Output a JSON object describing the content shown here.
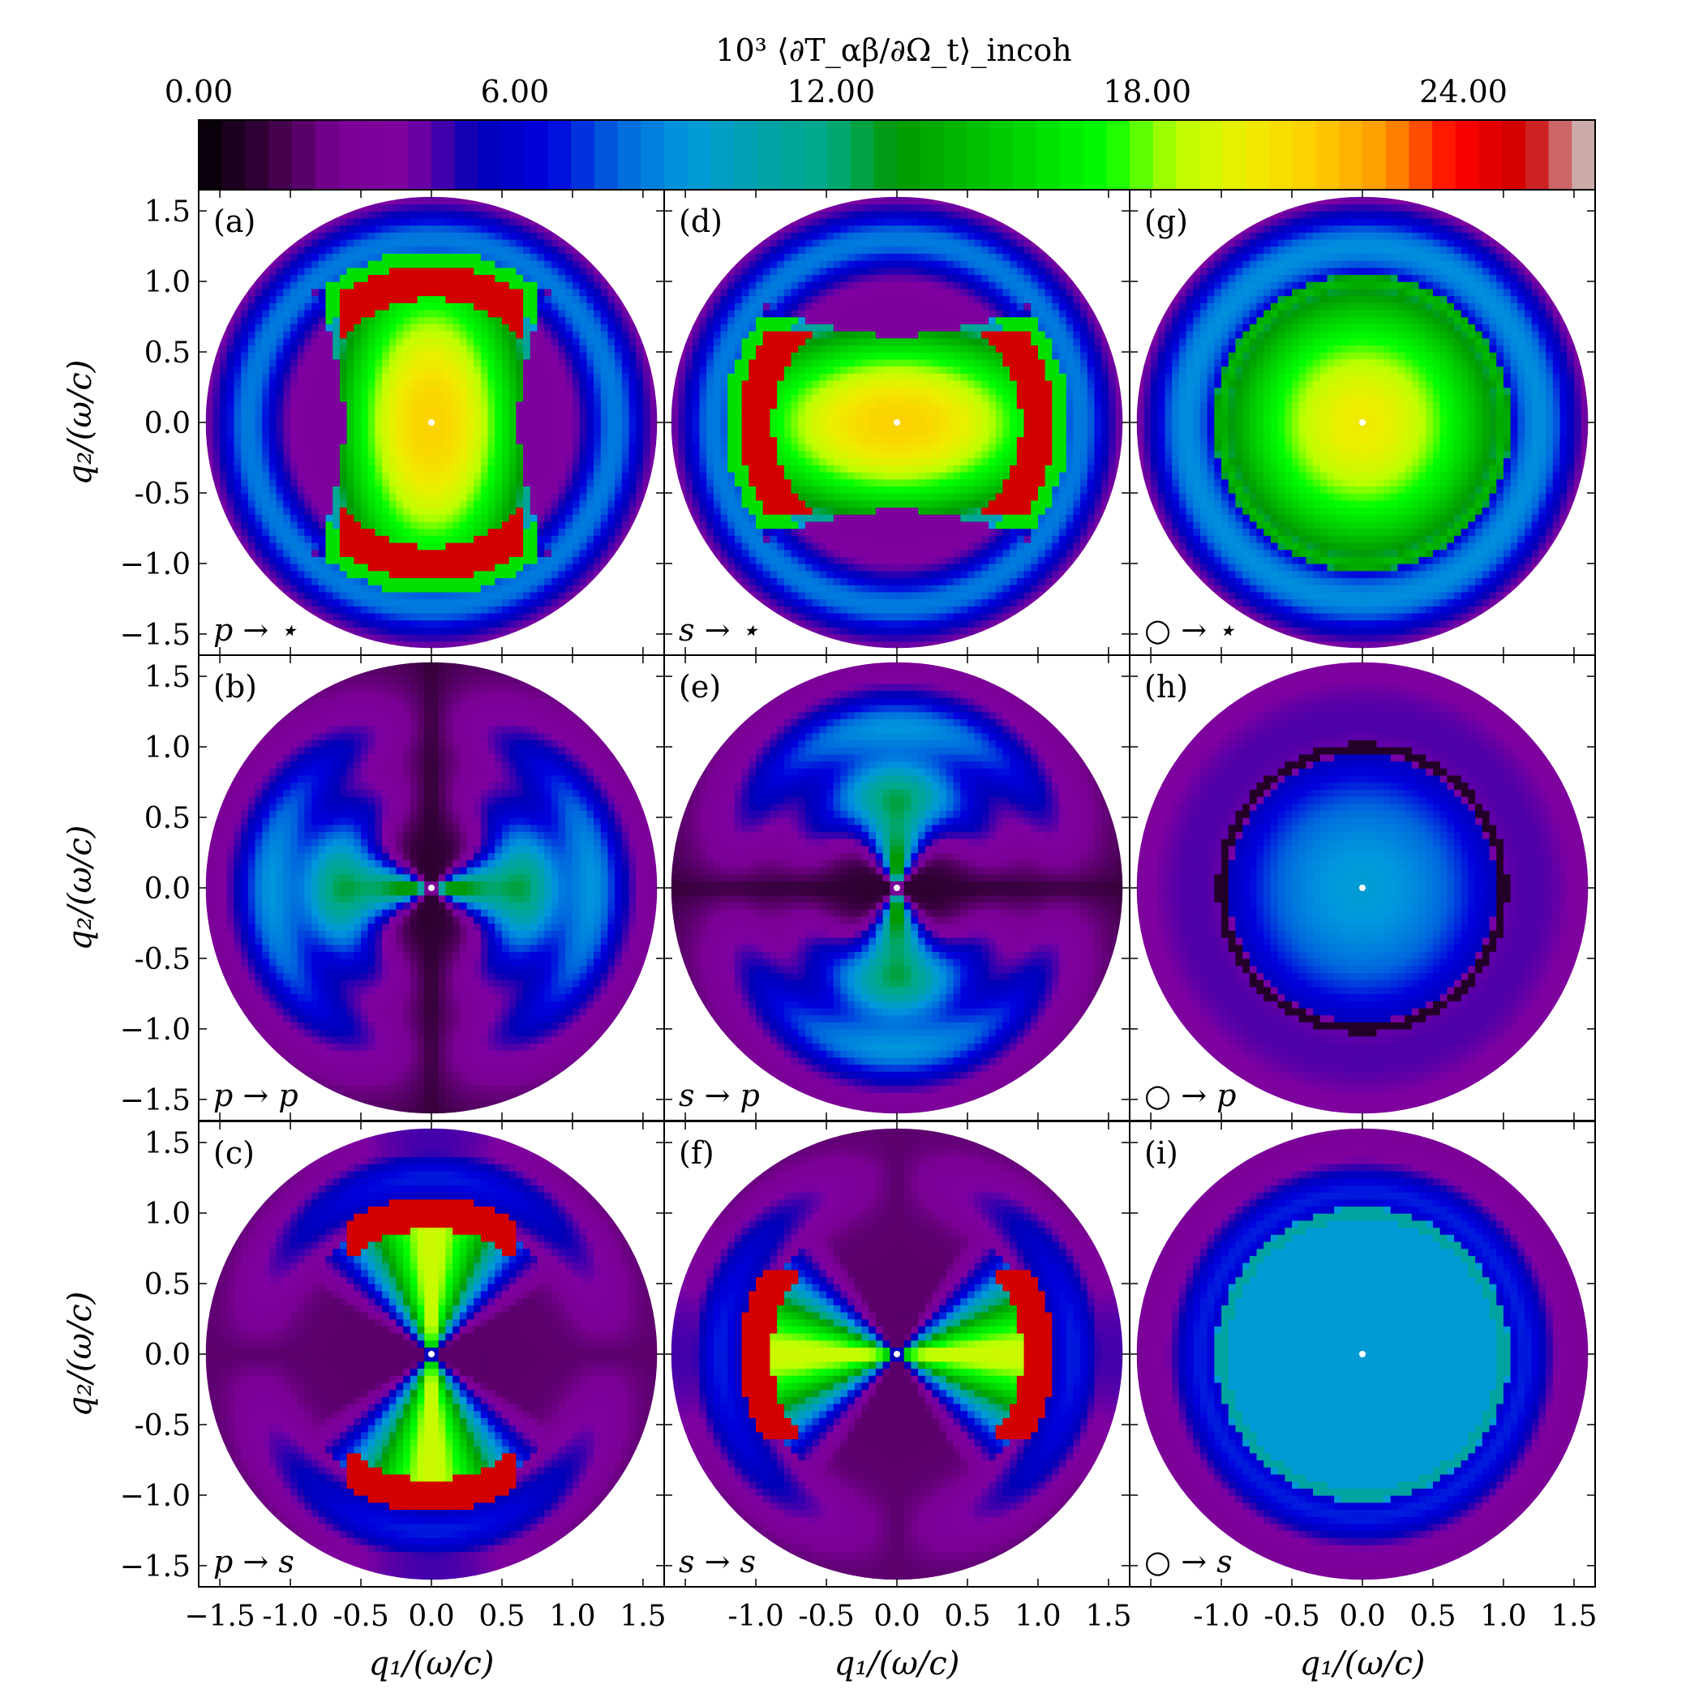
{
  "figure": {
    "colorbar": {
      "label": "10³ ⟨∂T_αβ/∂Ω_t⟩_incoh",
      "ticks": [
        0,
        6,
        12,
        18,
        24
      ],
      "tick_labels": [
        "0.00",
        "6.00",
        "12.00",
        "18.00",
        "24.00"
      ],
      "range": [
        0,
        26.5
      ],
      "colormap": "nipy_spectral"
    },
    "axes": {
      "xlabel": "q₁/(ω/c)",
      "ylabel": "q₂/(ω/c)",
      "range": [
        -1.65,
        1.65
      ],
      "y_ticks": [
        -1.5,
        -1.0,
        -0.5,
        0.0,
        0.5,
        1.0,
        1.5
      ],
      "y_tick_labels": [
        "−1.5",
        "−1.0",
        "-0.5",
        "0.0",
        "0.5",
        "1.0",
        "1.5"
      ],
      "x_ticks_first_column": [
        -1.5,
        -1.0,
        -0.5,
        0.0,
        0.5,
        1.0,
        1.5
      ],
      "x_tick_labels_first_column": [
        "−1.5",
        "-1.0",
        "-0.5",
        "0.0",
        "0.5",
        "1.0",
        "1.5"
      ],
      "x_ticks_other_columns": [
        -1.0,
        -0.5,
        0.0,
        0.5,
        1.0,
        1.5
      ],
      "x_tick_labels_other_columns": [
        "-1.0",
        "-0.5",
        "0.0",
        "0.5",
        "1.0",
        "1.5"
      ]
    },
    "panels": [
      {
        "id": "(a)",
        "label": "p → ⋆",
        "row": 0,
        "col": 0
      },
      {
        "id": "(d)",
        "label": "s → ⋆",
        "row": 0,
        "col": 1
      },
      {
        "id": "(g)",
        "label": "○ → ⋆",
        "row": 0,
        "col": 2
      },
      {
        "id": "(b)",
        "label": "p → p",
        "row": 1,
        "col": 0
      },
      {
        "id": "(e)",
        "label": "s → p",
        "row": 1,
        "col": 1
      },
      {
        "id": "(h)",
        "label": "○ → p",
        "row": 1,
        "col": 2
      },
      {
        "id": "(c)",
        "label": "p → s",
        "row": 2,
        "col": 0
      },
      {
        "id": "(f)",
        "label": "s → s",
        "row": 2,
        "col": 1
      },
      {
        "id": "(i)",
        "label": "○ → s",
        "row": 2,
        "col": 2
      }
    ]
  },
  "chart_data": {
    "type": "heatmap",
    "colorbar_label": "10³ ⟨∂T_αβ/∂Ω_t⟩_incoh",
    "colorbar_range": [
      0,
      26.5
    ],
    "xlabel": "q₁/(ω/c)",
    "ylabel": "q₂/(ω/c)",
    "xlim": [
      -1.65,
      1.65
    ],
    "ylim": [
      -1.65,
      1.65
    ],
    "domain_radius": 1.6,
    "panels": [
      {
        "id": "(a)",
        "label": "p → ⋆",
        "center_value": 21,
        "peak_value": 25,
        "peak_location": [
          0.0,
          1.0
        ],
        "rim_value": 4
      },
      {
        "id": "(d)",
        "label": "s → ⋆",
        "center_value": 21,
        "peak_value": 25,
        "peak_location": [
          1.0,
          0.0
        ],
        "rim_value": 4
      },
      {
        "id": "(g)",
        "label": "○ → ⋆",
        "center_value": 20,
        "ring_value_at_q_1": 12,
        "rim_value": 4
      },
      {
        "id": "(b)",
        "label": "p → p",
        "center_value": 15,
        "lobe_axis": "q1",
        "rim_value": 1
      },
      {
        "id": "(e)",
        "label": "s → p",
        "center_value": 15,
        "lobe_axis": "q2",
        "rim_value": 1
      },
      {
        "id": "(h)",
        "label": "○ → p",
        "center_value": 10,
        "dark_ring_at": 1.0,
        "rim_value": 3
      },
      {
        "id": "(c)",
        "label": "p → s",
        "center_value": 19,
        "peak_value": 25,
        "peak_location": [
          0.0,
          1.0
        ],
        "rim_value": 1
      },
      {
        "id": "(f)",
        "label": "s → s",
        "center_value": 19,
        "peak_value": 25,
        "peak_location": [
          1.0,
          0.0
        ],
        "rim_value": 1
      },
      {
        "id": "(i)",
        "label": "○ → s",
        "center_value": 9.5,
        "ring_value_at_q_1": 11,
        "rim_value": 3
      }
    ]
  }
}
